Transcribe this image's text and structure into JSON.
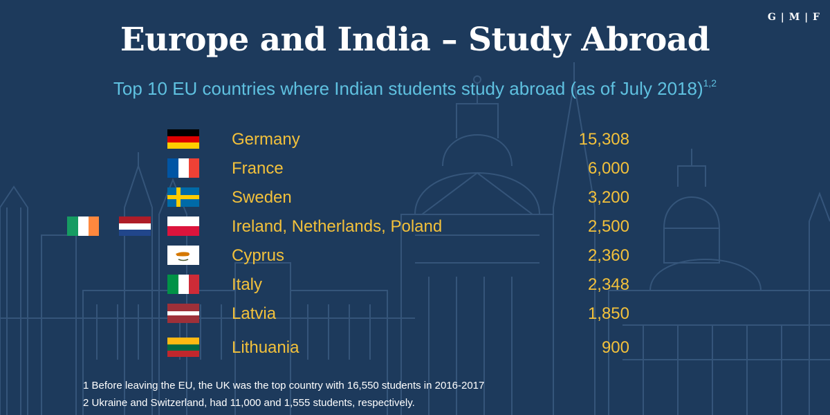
{
  "logo": "G | M | F",
  "title": "Europe and India – Study Abroad",
  "subtitle": {
    "text": "Top 10 EU countries where Indian students study abroad (as of July 2018)",
    "sup": "1,2"
  },
  "colors": {
    "background": "#1d3a5c",
    "title": "#ffffff",
    "subtitle": "#5fc1e0",
    "values": "#f3c13b"
  },
  "chart_data": {
    "type": "table",
    "categories": [
      "Germany",
      "France",
      "Sweden",
      "Ireland, Netherlands, Poland",
      "Cyprus",
      "Italy",
      "Latvia",
      "Lithuania"
    ],
    "values": [
      15308,
      6000,
      3200,
      2500,
      2360,
      2348,
      1850,
      900
    ],
    "value_labels": [
      "15,308",
      "6,000",
      "3,200",
      "2,500",
      "2,360",
      "2,348",
      "1,850",
      "900"
    ],
    "flags": [
      [
        "germany"
      ],
      [
        "france"
      ],
      [
        "sweden"
      ],
      [
        "ireland",
        "netherlands",
        "poland"
      ],
      [
        "cyprus"
      ],
      [
        "italy"
      ],
      [
        "latvia"
      ],
      [
        "lithuania"
      ]
    ]
  },
  "footnotes": [
    "1 Before leaving the EU, the UK was the top country with 16,550 students in 2016-2017",
    "2 Ukraine and Switzerland, had 11,000 and 1,555 students, respectively."
  ]
}
